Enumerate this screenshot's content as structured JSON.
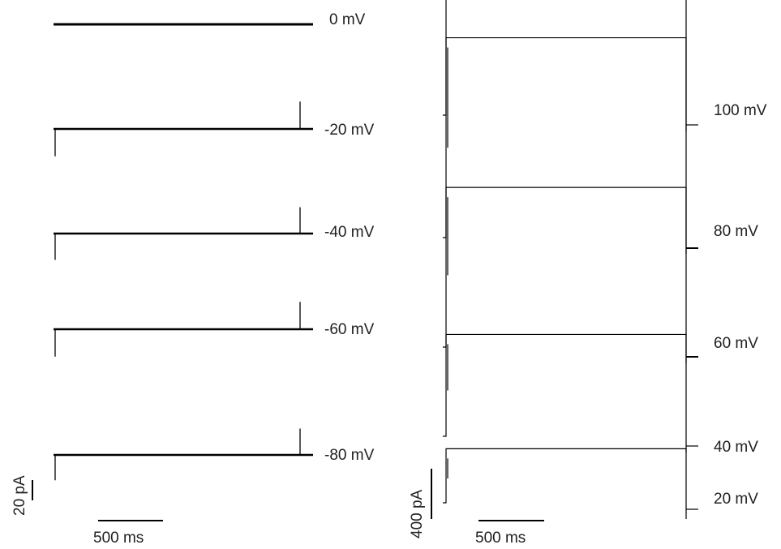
{
  "chart_data": [
    {
      "type": "line",
      "panel": "left",
      "traces": [
        {
          "label": "0 mV",
          "step_current": 0,
          "onset_spike": 0,
          "offset_spike": 0
        },
        {
          "label": "-20 mV",
          "step_current": 0,
          "onset_spike": -27,
          "offset_spike": 27
        },
        {
          "label": "-40 mV",
          "step_current": 0,
          "onset_spike": -26,
          "offset_spike": 26
        },
        {
          "label": "-60 mV",
          "step_current": 0,
          "onset_spike": -27,
          "offset_spike": 27
        },
        {
          "label": "-80 mV",
          "step_current": 0,
          "onset_spike": -25,
          "offset_spike": 26
        }
      ],
      "scale_bars": {
        "current_label": "20 pA",
        "current_value": 20,
        "time_label": "500 ms",
        "time_value": 500
      }
    },
    {
      "type": "line",
      "panel": "right",
      "traces": [
        {
          "label": "100 mV",
          "step_current": 2270
        },
        {
          "label": "80 mV",
          "step_current": 1590
        },
        {
          "label": "60 mV",
          "step_current": 1270
        },
        {
          "label": "40 mV",
          "step_current": 810
        },
        {
          "label": "20 mV",
          "step_current": 430
        }
      ],
      "scale_bars": {
        "current_label": "400 pA",
        "current_value": 400,
        "time_label": "500 ms",
        "time_value": 500
      }
    }
  ]
}
